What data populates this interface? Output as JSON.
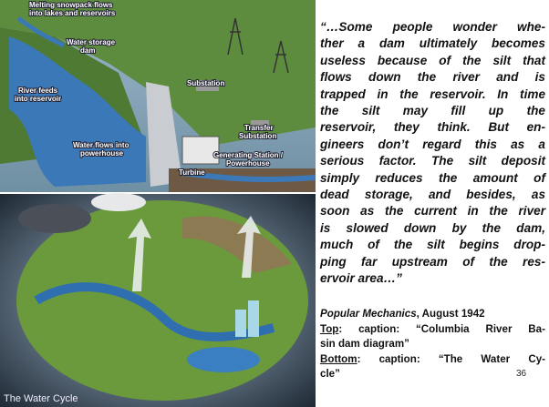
{
  "top_image": {
    "labels": [
      {
        "lines": [
          "Melting snowpack flows",
          "into lakes and reservoirs"
        ]
      },
      {
        "lines": [
          "Water storage",
          "dam"
        ]
      },
      {
        "lines": [
          "River feeds",
          "into reservoir"
        ]
      },
      {
        "lines": [
          "Substation"
        ]
      },
      {
        "lines": [
          "Transfer",
          "Substation"
        ]
      },
      {
        "lines": [
          "Generating Station /",
          "Powerhouse"
        ]
      },
      {
        "lines": [
          "Water flows into",
          "powerhouse"
        ]
      },
      {
        "lines": [
          "Turbine"
        ]
      }
    ]
  },
  "bottom_image": {
    "title": "The Water Cycle"
  },
  "quote": {
    "lines": [
      "“…Some people wonder whe-",
      "ther a dam ultimately becomes",
      "useless because of the silt that",
      "flows down the river and is",
      "trapped in the reservoir. In time",
      "the silt may fill up the",
      "reservoir, they think. But en-",
      "gineers don’t regard this as a",
      "serious factor. The silt deposit",
      "simply reduces the amount of",
      "dead storage, and besides, as",
      "soon as the current in the river",
      "is slowed down by the dam,",
      "much of the silt begins drop-",
      "ping far upstream of the res-",
      "ervoir area…”"
    ]
  },
  "source": {
    "publication": "Popular Mechanics",
    "date": ", August 1942"
  },
  "captions": [
    {
      "label": "Top",
      "lines": [
        ": caption: “Columbia River Ba-",
        "sin dam diagram”"
      ]
    },
    {
      "label": "Bottom",
      "lines": [
        ": caption: “The Water Cy-",
        "cle”"
      ]
    }
  ],
  "slide_number": "36"
}
